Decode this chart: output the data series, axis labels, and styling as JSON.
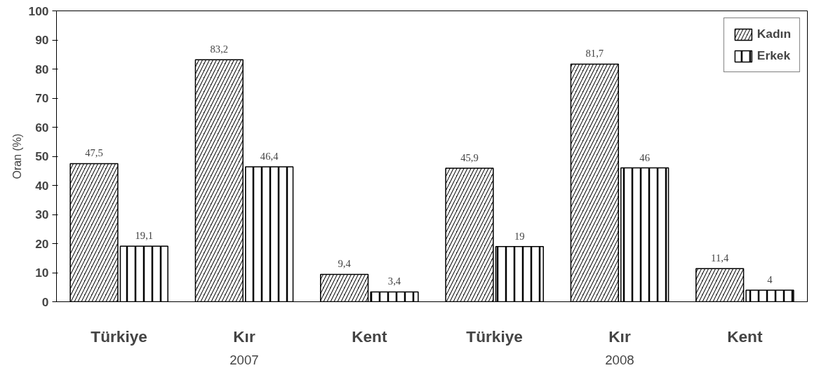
{
  "chart_data": {
    "type": "bar",
    "ylabel": "Oran (%)",
    "categories": [
      "Türkiye",
      "Kır",
      "Kent",
      "Türkiye",
      "Kır",
      "Kent"
    ],
    "series": [
      {
        "name": "Kadın",
        "color": "#000000",
        "values": [
          47.5,
          83.2,
          9.4,
          45.9,
          81.7,
          11.4
        ],
        "value_labels": [
          "47,5",
          "83,2",
          "9,4",
          "45,9",
          "81,7",
          "11,4"
        ]
      },
      {
        "name": "Erkek",
        "color": "#000000",
        "values": [
          19.1,
          46.4,
          3.4,
          19,
          46,
          4
        ],
        "value_labels": [
          "19,1",
          "46,4",
          "3,4",
          "19",
          "46",
          "4"
        ]
      }
    ],
    "ylim": [
      0,
      100
    ],
    "yticks": [
      0,
      10,
      20,
      30,
      40,
      50,
      60,
      70,
      80,
      90,
      100
    ],
    "legend": "top right",
    "grid": false,
    "annotations": [
      "2007",
      "2008"
    ]
  }
}
